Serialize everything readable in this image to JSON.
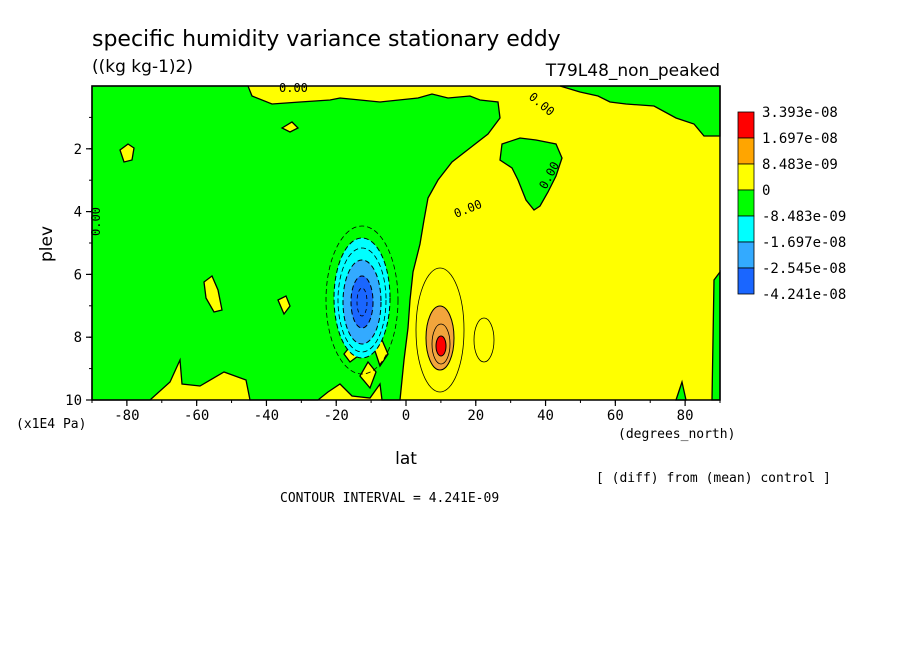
{
  "colors": {
    "red": "#ff0000",
    "orange": "#ffa500",
    "light_orange": "#f2a53c",
    "yellow": "#ffff00",
    "green": "#00ff00",
    "cyan": "#00ffff",
    "light_blue": "#33aaff",
    "blue": "#1a66ff",
    "background": "#ffffff",
    "line": "#000000"
  },
  "chart_data": {
    "type": "heatmap",
    "title": "specific humidity variance stationary eddy",
    "units": "((kg kg-1)2)",
    "run_label": "T79L48_non_peaked",
    "xlabel": "lat",
    "x_units": "(degrees_north)",
    "ylabel": "plev",
    "y_units": "(x1E4 Pa)",
    "xlim": [
      -90,
      90
    ],
    "ylim": [
      10,
      0
    ],
    "x_ticks": [
      -80,
      -60,
      -40,
      -20,
      0,
      20,
      40,
      60,
      80
    ],
    "y_ticks": [
      2,
      4,
      6,
      8,
      10
    ],
    "contour_interval_text": "CONTOUR INTERVAL = 4.241E-09",
    "diff_note": "[ (diff) from (mean) control ]",
    "contour_labels": [
      "0.00",
      "0.00",
      "0.00",
      "0.00",
      "0.00"
    ],
    "legend": [
      {
        "label": "3.393e-08",
        "color": "#ff0000"
      },
      {
        "label": "1.697e-08",
        "color": "#ffa500"
      },
      {
        "label": "8.483e-09",
        "color": "#ffff00"
      },
      {
        "label": "0",
        "color": "#00ff00"
      },
      {
        "label": "-8.483e-09",
        "color": "#00ffff"
      },
      {
        "label": "-1.697e-08",
        "color": "#33aaff"
      },
      {
        "label": "-2.545e-08",
        "color": "#1a66ff"
      },
      {
        "label": "-4.241e-08",
        "color": ""
      }
    ],
    "features": [
      {
        "name": "negative_extremum",
        "lat": -12,
        "plev": 6.8,
        "value_approx": -3.4e-08
      },
      {
        "name": "positive_extremum",
        "lat": 10,
        "plev": 8.3,
        "value_approx": 3.4e-08
      },
      {
        "name": "positive_region",
        "lat_range": [
          0,
          90
        ],
        "plev_range": [
          0,
          10
        ]
      },
      {
        "name": "negative_region",
        "lat_range": [
          -90,
          0
        ],
        "plev_range": [
          0,
          10
        ]
      }
    ]
  }
}
